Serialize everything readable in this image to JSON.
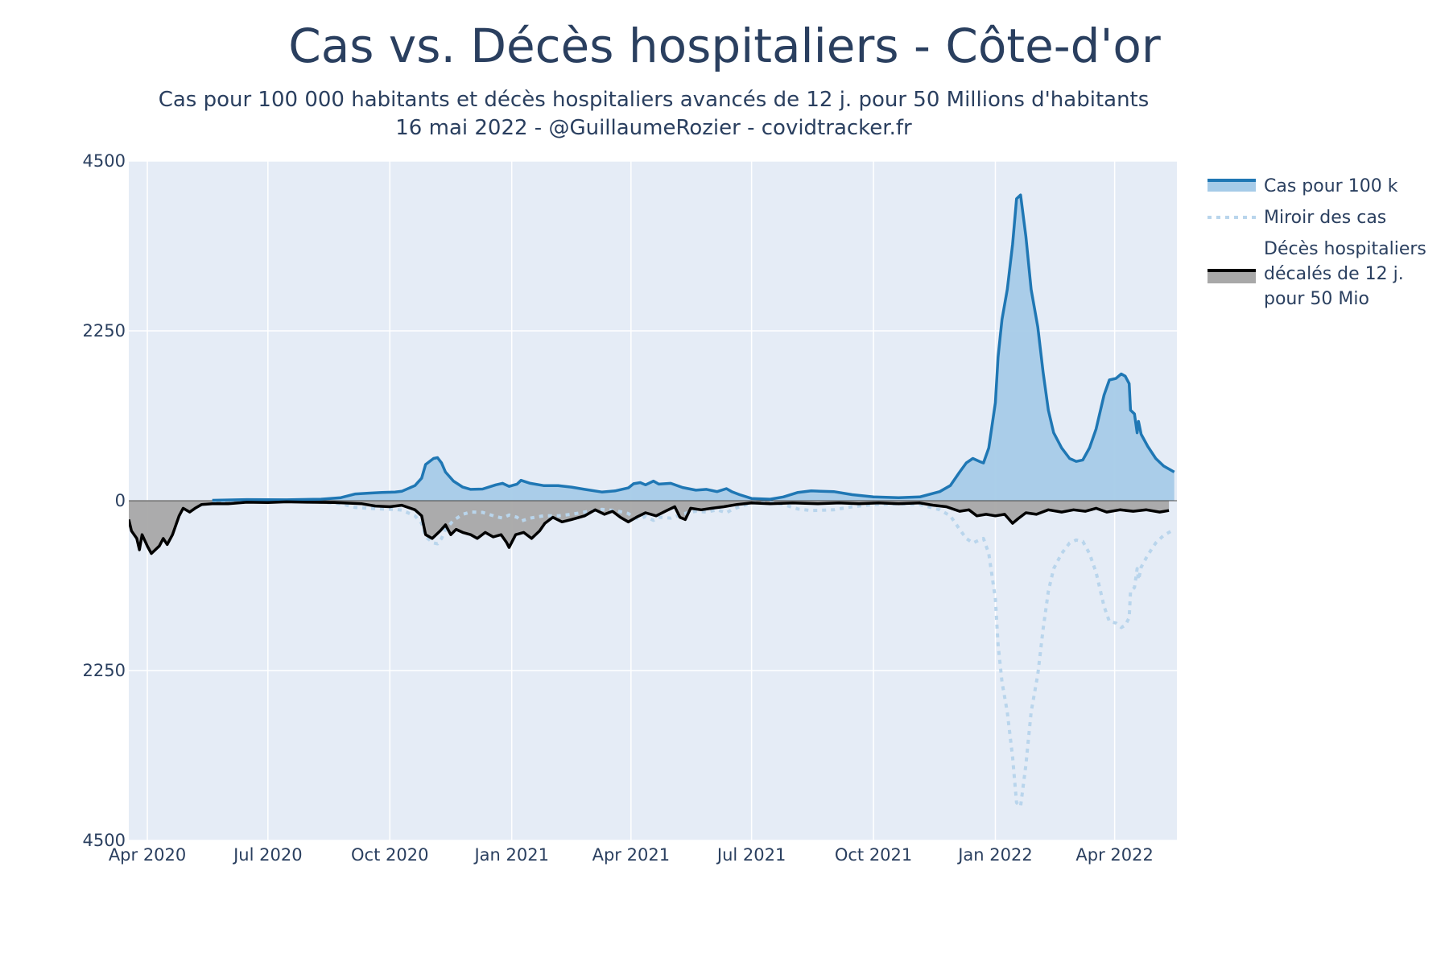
{
  "chart_data": {
    "type": "area",
    "title": "Cas vs. Décès hospitaliers - Côte-d'or",
    "subtitle_lines": [
      "Cas pour 100 000 habitants et décès hospitaliers avancés de 12 j. pour 50 Millions d'habitants",
      "16 mai 2022 - @GuillaumeRozier - covidtracker.fr"
    ],
    "xlabel": "",
    "ylabel": "",
    "ylim": [
      -4500,
      4500
    ],
    "y_tick_values": [
      4500,
      2250,
      0,
      -2250,
      -4500
    ],
    "y_tick_labels": [
      "4500",
      "2250",
      "0",
      "2250",
      "4500"
    ],
    "x_ticks": [
      {
        "date": "2020-04-01",
        "label": "Apr 2020"
      },
      {
        "date": "2020-07-01",
        "label": "Jul 2020"
      },
      {
        "date": "2020-10-01",
        "label": "Oct 2020"
      },
      {
        "date": "2021-01-01",
        "label": "Jan 2021"
      },
      {
        "date": "2021-04-01",
        "label": "Apr 2021"
      },
      {
        "date": "2021-07-01",
        "label": "Jul 2021"
      },
      {
        "date": "2021-10-01",
        "label": "Oct 2021"
      },
      {
        "date": "2022-01-01",
        "label": "Jan 2022"
      },
      {
        "date": "2022-04-01",
        "label": "Apr 2022"
      }
    ],
    "xlim": [
      "2020-03-18",
      "2022-05-18"
    ],
    "grid": true,
    "legend_position": "right",
    "colors": {
      "plot_bg": "#e5ecf6",
      "grid": "#ffffff",
      "cases_line": "#1f77b4",
      "cases_fill": "#a6cbe8",
      "mirror_line": "#b9d5ec",
      "deaths_line": "#000000",
      "deaths_fill": "#a8a8a8"
    },
    "series": [
      {
        "name": "Cas pour 100 k",
        "key": "cases",
        "style": "line+fill",
        "points": [
          [
            "2020-05-20",
            5
          ],
          [
            "2020-06-15",
            15
          ],
          [
            "2020-07-15",
            12
          ],
          [
            "2020-08-10",
            20
          ],
          [
            "2020-08-25",
            40
          ],
          [
            "2020-09-05",
            90
          ],
          [
            "2020-09-15",
            100
          ],
          [
            "2020-09-25",
            110
          ],
          [
            "2020-10-05",
            115
          ],
          [
            "2020-10-10",
            125
          ],
          [
            "2020-10-20",
            200
          ],
          [
            "2020-10-25",
            300
          ],
          [
            "2020-10-28",
            480
          ],
          [
            "2020-11-03",
            560
          ],
          [
            "2020-11-06",
            570
          ],
          [
            "2020-11-09",
            500
          ],
          [
            "2020-11-12",
            380
          ],
          [
            "2020-11-18",
            260
          ],
          [
            "2020-11-25",
            180
          ],
          [
            "2020-12-01",
            150
          ],
          [
            "2020-12-10",
            155
          ],
          [
            "2020-12-20",
            210
          ],
          [
            "2020-12-25",
            230
          ],
          [
            "2020-12-30",
            190
          ],
          [
            "2021-01-05",
            220
          ],
          [
            "2021-01-08",
            270
          ],
          [
            "2021-01-15",
            230
          ],
          [
            "2021-01-25",
            200
          ],
          [
            "2021-02-05",
            200
          ],
          [
            "2021-02-15",
            180
          ],
          [
            "2021-02-25",
            150
          ],
          [
            "2021-03-10",
            115
          ],
          [
            "2021-03-20",
            130
          ],
          [
            "2021-03-30",
            170
          ],
          [
            "2021-04-03",
            225
          ],
          [
            "2021-04-08",
            240
          ],
          [
            "2021-04-12",
            210
          ],
          [
            "2021-04-18",
            260
          ],
          [
            "2021-04-22",
            220
          ],
          [
            "2021-05-01",
            230
          ],
          [
            "2021-05-10",
            175
          ],
          [
            "2021-05-20",
            140
          ],
          [
            "2021-05-28",
            150
          ],
          [
            "2021-06-05",
            120
          ],
          [
            "2021-06-12",
            160
          ],
          [
            "2021-06-16",
            120
          ],
          [
            "2021-06-22",
            80
          ],
          [
            "2021-07-01",
            30
          ],
          [
            "2021-07-15",
            20
          ],
          [
            "2021-07-25",
            50
          ],
          [
            "2021-08-05",
            110
          ],
          [
            "2021-08-15",
            130
          ],
          [
            "2021-09-01",
            120
          ],
          [
            "2021-09-15",
            80
          ],
          [
            "2021-10-01",
            50
          ],
          [
            "2021-10-20",
            40
          ],
          [
            "2021-11-05",
            50
          ],
          [
            "2021-11-20",
            120
          ],
          [
            "2021-11-28",
            200
          ],
          [
            "2021-12-05",
            380
          ],
          [
            "2021-12-10",
            500
          ],
          [
            "2021-12-15",
            560
          ],
          [
            "2021-12-20",
            520
          ],
          [
            "2021-12-23",
            500
          ],
          [
            "2021-12-27",
            700
          ],
          [
            "2022-01-01",
            1300
          ],
          [
            "2022-01-03",
            1900
          ],
          [
            "2022-01-06",
            2400
          ],
          [
            "2022-01-10",
            2800
          ],
          [
            "2022-01-14",
            3400
          ],
          [
            "2022-01-17",
            4000
          ],
          [
            "2022-01-20",
            4050
          ],
          [
            "2022-01-24",
            3500
          ],
          [
            "2022-01-28",
            2800
          ],
          [
            "2022-02-02",
            2300
          ],
          [
            "2022-02-06",
            1700
          ],
          [
            "2022-02-10",
            1200
          ],
          [
            "2022-02-14",
            900
          ],
          [
            "2022-02-20",
            700
          ],
          [
            "2022-02-26",
            560
          ],
          [
            "2022-03-03",
            520
          ],
          [
            "2022-03-08",
            540
          ],
          [
            "2022-03-13",
            700
          ],
          [
            "2022-03-18",
            950
          ],
          [
            "2022-03-24",
            1400
          ],
          [
            "2022-03-28",
            1600
          ],
          [
            "2022-04-02",
            1620
          ],
          [
            "2022-04-06",
            1680
          ],
          [
            "2022-04-09",
            1650
          ],
          [
            "2022-04-12",
            1550
          ],
          [
            "2022-04-13",
            1200
          ],
          [
            "2022-04-16",
            1150
          ],
          [
            "2022-04-18",
            900
          ],
          [
            "2022-04-19",
            1050
          ],
          [
            "2022-04-21",
            880
          ],
          [
            "2022-04-26",
            720
          ],
          [
            "2022-05-02",
            560
          ],
          [
            "2022-05-08",
            460
          ],
          [
            "2022-05-16",
            380
          ]
        ]
      },
      {
        "name": "Miroir des cas",
        "key": "mirror",
        "style": "dotted",
        "mirror_of": "cases"
      },
      {
        "name": "Décès hospitaliers décalés de 12 j. pour 50 Mio",
        "legend_lines": [
          "Décès hospitaliers",
          "décalés de 12 j.",
          "pour 50 Mio"
        ],
        "key": "deaths",
        "style": "line+fill",
        "points": [
          [
            "2020-03-18",
            -250
          ],
          [
            "2020-03-20",
            -400
          ],
          [
            "2020-03-24",
            -500
          ],
          [
            "2020-03-26",
            -650
          ],
          [
            "2020-03-28",
            -450
          ],
          [
            "2020-04-01",
            -600
          ],
          [
            "2020-04-04",
            -700
          ],
          [
            "2020-04-07",
            -650
          ],
          [
            "2020-04-10",
            -600
          ],
          [
            "2020-04-13",
            -500
          ],
          [
            "2020-04-16",
            -580
          ],
          [
            "2020-04-20",
            -450
          ],
          [
            "2020-04-25",
            -200
          ],
          [
            "2020-04-28",
            -100
          ],
          [
            "2020-05-03",
            -150
          ],
          [
            "2020-05-07",
            -100
          ],
          [
            "2020-05-12",
            -50
          ],
          [
            "2020-05-20",
            -40
          ],
          [
            "2020-06-01",
            -40
          ],
          [
            "2020-06-15",
            -20
          ],
          [
            "2020-07-01",
            -25
          ],
          [
            "2020-07-15",
            -15
          ],
          [
            "2020-08-01",
            -20
          ],
          [
            "2020-08-20",
            -25
          ],
          [
            "2020-09-10",
            -40
          ],
          [
            "2020-09-20",
            -70
          ],
          [
            "2020-10-01",
            -80
          ],
          [
            "2020-10-10",
            -60
          ],
          [
            "2020-10-20",
            -120
          ],
          [
            "2020-10-25",
            -200
          ],
          [
            "2020-10-28",
            -450
          ],
          [
            "2020-11-02",
            -500
          ],
          [
            "2020-11-08",
            -400
          ],
          [
            "2020-11-12",
            -320
          ],
          [
            "2020-11-16",
            -450
          ],
          [
            "2020-11-20",
            -380
          ],
          [
            "2020-11-25",
            -420
          ],
          [
            "2020-12-01",
            -450
          ],
          [
            "2020-12-06",
            -500
          ],
          [
            "2020-12-12",
            -420
          ],
          [
            "2020-12-18",
            -480
          ],
          [
            "2020-12-24",
            -450
          ],
          [
            "2020-12-28",
            -550
          ],
          [
            "2020-12-30",
            -620
          ],
          [
            "2021-01-04",
            -450
          ],
          [
            "2021-01-10",
            -420
          ],
          [
            "2021-01-16",
            -500
          ],
          [
            "2021-01-22",
            -400
          ],
          [
            "2021-01-26",
            -300
          ],
          [
            "2021-02-01",
            -220
          ],
          [
            "2021-02-08",
            -280
          ],
          [
            "2021-02-15",
            -250
          ],
          [
            "2021-02-25",
            -200
          ],
          [
            "2021-03-05",
            -120
          ],
          [
            "2021-03-12",
            -180
          ],
          [
            "2021-03-18",
            -140
          ],
          [
            "2021-03-24",
            -220
          ],
          [
            "2021-03-30",
            -280
          ],
          [
            "2021-04-05",
            -220
          ],
          [
            "2021-04-12",
            -160
          ],
          [
            "2021-04-20",
            -200
          ],
          [
            "2021-04-28",
            -130
          ],
          [
            "2021-05-04",
            -80
          ],
          [
            "2021-05-08",
            -220
          ],
          [
            "2021-05-12",
            -250
          ],
          [
            "2021-05-16",
            -100
          ],
          [
            "2021-05-24",
            -120
          ],
          [
            "2021-06-01",
            -100
          ],
          [
            "2021-06-10",
            -80
          ],
          [
            "2021-06-20",
            -50
          ],
          [
            "2021-07-01",
            -30
          ],
          [
            "2021-07-15",
            -40
          ],
          [
            "2021-08-01",
            -30
          ],
          [
            "2021-08-20",
            -40
          ],
          [
            "2021-09-05",
            -30
          ],
          [
            "2021-09-20",
            -40
          ],
          [
            "2021-10-05",
            -30
          ],
          [
            "2021-10-20",
            -40
          ],
          [
            "2021-11-05",
            -30
          ],
          [
            "2021-11-15",
            -60
          ],
          [
            "2021-11-25",
            -80
          ],
          [
            "2021-12-05",
            -140
          ],
          [
            "2021-12-12",
            -120
          ],
          [
            "2021-12-18",
            -200
          ],
          [
            "2021-12-25",
            -180
          ],
          [
            "2022-01-01",
            -200
          ],
          [
            "2022-01-08",
            -180
          ],
          [
            "2022-01-14",
            -300
          ],
          [
            "2022-01-18",
            -240
          ],
          [
            "2022-01-24",
            -160
          ],
          [
            "2022-02-01",
            -180
          ],
          [
            "2022-02-10",
            -120
          ],
          [
            "2022-02-20",
            -150
          ],
          [
            "2022-03-01",
            -120
          ],
          [
            "2022-03-10",
            -140
          ],
          [
            "2022-03-18",
            -100
          ],
          [
            "2022-03-26",
            -150
          ],
          [
            "2022-04-05",
            -120
          ],
          [
            "2022-04-15",
            -140
          ],
          [
            "2022-04-25",
            -120
          ],
          [
            "2022-05-05",
            -150
          ],
          [
            "2022-05-12",
            -130
          ]
        ]
      }
    ]
  }
}
